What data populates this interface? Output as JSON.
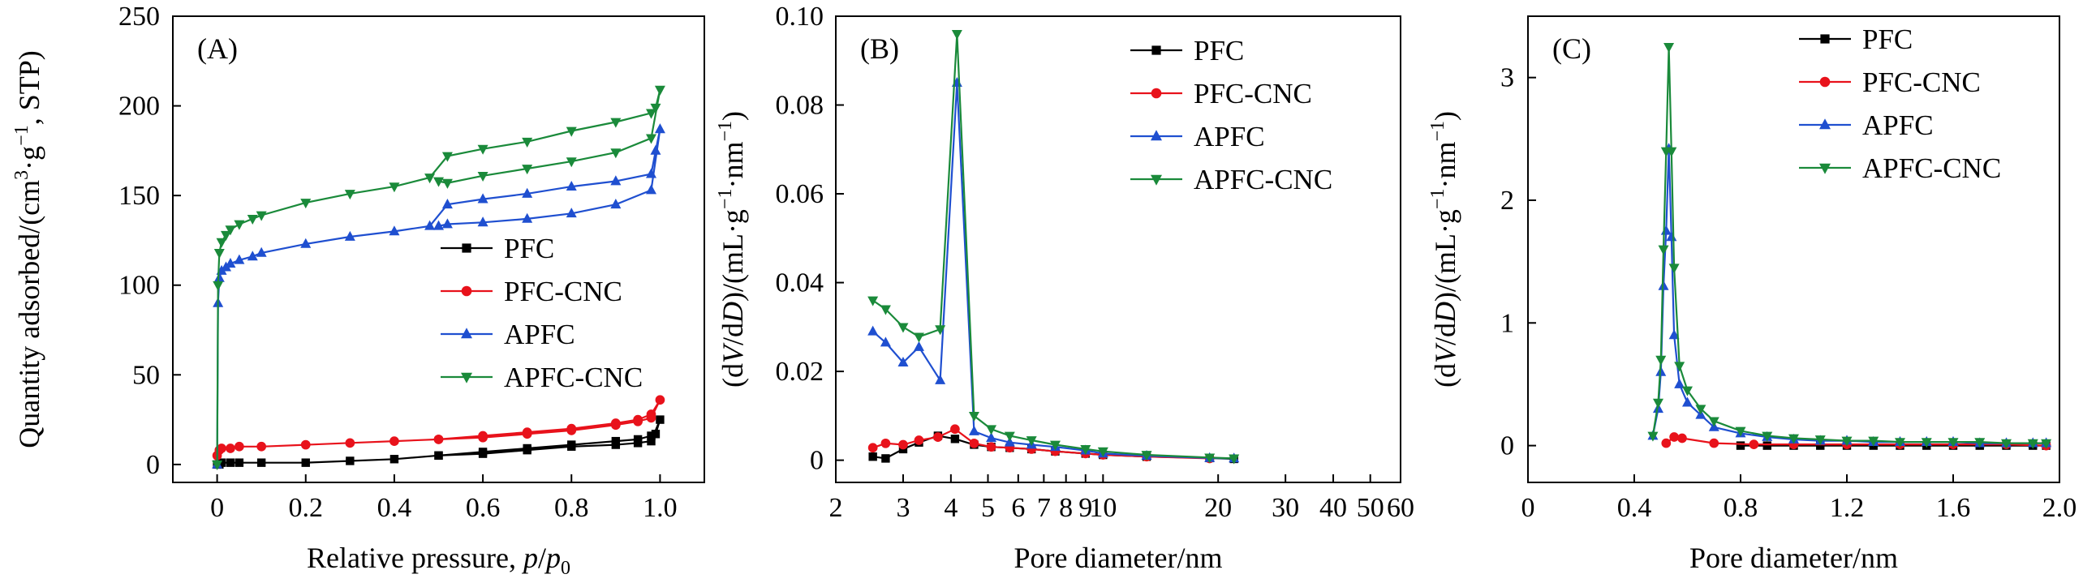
{
  "chart_data": [
    {
      "panel": "(A)",
      "type": "line",
      "xlabel": "Relative pressure, p/p0",
      "xlabel_parts": {
        "prefix": "Relative pressure, ",
        "var": "p",
        "slash": "/",
        "var2": "p",
        "sub": "0"
      },
      "ylabel": "Quantity adsorbed/(cm³·g⁻¹, STP)",
      "ylabel_parts": {
        "prefix": "Quantity adsorbed/(cm",
        "sup1": "3",
        "mid": "·g",
        "sup2": "−1",
        "suffix": ", STP)"
      },
      "xlim": [
        -0.1,
        1.1
      ],
      "ylim": [
        -10,
        250
      ],
      "xticks": [
        0,
        0.2,
        0.4,
        0.6,
        0.8,
        1.0
      ],
      "xtick_labels": [
        "0",
        "0.2",
        "0.4",
        "0.6",
        "0.8",
        "1.0"
      ],
      "yticks": [
        0,
        50,
        100,
        150,
        200,
        250
      ],
      "ytick_labels": [
        "0",
        "50",
        "100",
        "150",
        "200",
        "250"
      ],
      "legend": [
        "PFC",
        "PFC-CNC",
        "APFC",
        "APFC-CNC"
      ],
      "legend_position": "center-right",
      "series": [
        {
          "name": "PFC",
          "color": "#000000",
          "marker": "square",
          "x": [
            0.0,
            0.005,
            0.01,
            0.03,
            0.05,
            0.1,
            0.2,
            0.3,
            0.4,
            0.5,
            0.6,
            0.7,
            0.8,
            0.9,
            0.95,
            0.98,
            0.99,
            1.0,
            0.98,
            0.95,
            0.9,
            0.8,
            0.7,
            0.6,
            0.5
          ],
          "y": [
            0,
            0,
            1,
            1,
            1,
            1,
            1,
            2,
            3,
            5,
            7,
            9,
            11,
            13,
            14,
            16,
            17,
            25,
            13,
            12,
            11,
            10,
            8,
            6,
            5
          ]
        },
        {
          "name": "PFC-CNC",
          "color": "#e8121b",
          "marker": "circle",
          "x": [
            0.0,
            0.005,
            0.01,
            0.03,
            0.05,
            0.1,
            0.2,
            0.3,
            0.4,
            0.5,
            0.6,
            0.7,
            0.8,
            0.9,
            0.95,
            0.98,
            1.0,
            0.98,
            0.95,
            0.9,
            0.8,
            0.7,
            0.6,
            0.5
          ],
          "y": [
            5,
            8,
            9,
            9,
            10,
            10,
            11,
            12,
            13,
            14,
            16,
            18,
            20,
            23,
            25,
            28,
            36,
            26,
            24,
            22,
            19,
            17,
            15,
            14
          ]
        },
        {
          "name": "APFC",
          "color": "#1f4fd0",
          "marker": "triangle-up",
          "x": [
            0.0,
            0.002,
            0.005,
            0.01,
            0.02,
            0.03,
            0.05,
            0.08,
            0.1,
            0.2,
            0.3,
            0.4,
            0.48,
            0.52,
            0.6,
            0.7,
            0.8,
            0.9,
            0.98,
            0.99,
            1.0,
            0.98,
            0.9,
            0.8,
            0.7,
            0.6,
            0.52,
            0.5
          ],
          "y": [
            0,
            90,
            104,
            108,
            110,
            112,
            114,
            116,
            118,
            123,
            127,
            130,
            133,
            145,
            148,
            151,
            155,
            158,
            162,
            175,
            187,
            153,
            145,
            140,
            137,
            135,
            134,
            133
          ]
        },
        {
          "name": "APFC-CNC",
          "color": "#1a8a3a",
          "marker": "triangle-down",
          "x": [
            0.0,
            0.002,
            0.005,
            0.01,
            0.02,
            0.03,
            0.05,
            0.08,
            0.1,
            0.2,
            0.3,
            0.4,
            0.48,
            0.52,
            0.6,
            0.7,
            0.8,
            0.9,
            0.98,
            0.99,
            1.0,
            0.98,
            0.9,
            0.8,
            0.7,
            0.6,
            0.52,
            0.5
          ],
          "y": [
            0,
            100,
            118,
            124,
            128,
            131,
            134,
            137,
            139,
            146,
            151,
            155,
            160,
            172,
            176,
            180,
            186,
            191,
            196,
            199,
            209,
            182,
            174,
            169,
            165,
            161,
            157,
            158
          ]
        }
      ]
    },
    {
      "panel": "(B)",
      "type": "line",
      "xscale": "log",
      "xlabel": "Pore diameter/nm",
      "ylabel": "(dV/dD)/(mL·g⁻¹·nm⁻¹)",
      "ylabel_parts": {
        "p1": "(d",
        "v1": "V",
        "p2": "/d",
        "v2": "D",
        "p3": ")/(mL·g",
        "s1": "−1",
        "p4": "·nm",
        "s2": "−1",
        "p5": ")"
      },
      "xlim": [
        2,
        60
      ],
      "ylim": [
        -0.005,
        0.1
      ],
      "xticks": [
        2,
        3,
        4,
        5,
        6,
        7,
        8,
        9,
        10,
        20,
        30,
        40,
        50,
        60
      ],
      "xtick_labels": [
        "2",
        "3",
        "4",
        "5",
        "6",
        "7",
        "8",
        "9",
        "10",
        "20",
        "30",
        "40",
        "50",
        "60"
      ],
      "yticks": [
        0,
        0.02,
        0.04,
        0.06,
        0.08,
        0.1
      ],
      "ytick_labels": [
        "0",
        "0.02",
        "0.04",
        "0.06",
        "0.08",
        "0.10"
      ],
      "legend": [
        "PFC",
        "PFC-CNC",
        "APFC",
        "APFC-CNC"
      ],
      "legend_position": "top-right",
      "series": [
        {
          "name": "PFC",
          "color": "#000000",
          "marker": "square",
          "x": [
            2.5,
            2.7,
            3.0,
            3.3,
            3.7,
            4.1,
            4.6,
            5.1,
            5.7,
            6.5,
            7.5,
            9,
            10,
            13,
            19,
            22
          ],
          "y": [
            0.0008,
            0.0004,
            0.0025,
            0.004,
            0.0055,
            0.0048,
            0.0035,
            0.003,
            0.0028,
            0.0025,
            0.002,
            0.0015,
            0.0012,
            0.0008,
            0.0005,
            0.0003
          ]
        },
        {
          "name": "PFC-CNC",
          "color": "#e8121b",
          "marker": "circle",
          "x": [
            2.5,
            2.7,
            3.0,
            3.3,
            3.7,
            4.1,
            4.6,
            5.1,
            5.7,
            6.5,
            7.5,
            9,
            10,
            13,
            19
          ],
          "y": [
            0.0028,
            0.0038,
            0.0035,
            0.0045,
            0.0052,
            0.007,
            0.0038,
            0.003,
            0.0028,
            0.0025,
            0.002,
            0.0015,
            0.0012,
            0.0008,
            0.0004
          ]
        },
        {
          "name": "APFC",
          "color": "#1f4fd0",
          "marker": "triangle-up",
          "x": [
            2.5,
            2.7,
            3.0,
            3.3,
            3.75,
            4.15,
            4.6,
            5.1,
            5.7,
            6.5,
            7.5,
            9,
            10,
            13,
            19,
            22
          ],
          "y": [
            0.029,
            0.0265,
            0.022,
            0.0255,
            0.018,
            0.085,
            0.0065,
            0.005,
            0.004,
            0.0035,
            0.003,
            0.0022,
            0.0015,
            0.001,
            0.0005,
            0.0004
          ]
        },
        {
          "name": "APFC-CNC",
          "color": "#1a8a3a",
          "marker": "triangle-down",
          "x": [
            2.5,
            2.7,
            3.0,
            3.3,
            3.75,
            4.15,
            4.6,
            5.1,
            5.7,
            6.5,
            7.5,
            9,
            10,
            13,
            19,
            22
          ],
          "y": [
            0.036,
            0.034,
            0.03,
            0.0278,
            0.0295,
            0.096,
            0.01,
            0.007,
            0.0055,
            0.0045,
            0.0035,
            0.0025,
            0.002,
            0.0012,
            0.0006,
            0.0004
          ]
        }
      ]
    },
    {
      "panel": "(C)",
      "type": "line",
      "xlabel": "Pore diameter/nm",
      "ylabel": "(dV/dD)/(mL·g⁻¹·nm⁻¹)",
      "ylabel_parts": {
        "p1": "(d",
        "v1": "V",
        "p2": "/d",
        "v2": "D",
        "p3": ")/(mL·g",
        "s1": "−1",
        "p4": "·nm",
        "s2": "−1",
        "p5": ")"
      },
      "xlim": [
        0,
        2.0
      ],
      "ylim": [
        -0.3,
        3.5
      ],
      "xticks": [
        0,
        0.4,
        0.8,
        1.2,
        1.6,
        2.0
      ],
      "xtick_labels": [
        "0",
        "0.4",
        "0.8",
        "1.2",
        "1.6",
        "2.0"
      ],
      "yticks": [
        0,
        1,
        2,
        3
      ],
      "ytick_labels": [
        "0",
        "1",
        "2",
        "3"
      ],
      "legend": [
        "PFC",
        "PFC-CNC",
        "APFC",
        "APFC-CNC"
      ],
      "legend_position": "top-right",
      "series": [
        {
          "name": "PFC",
          "color": "#000000",
          "marker": "square",
          "x": [
            0.8,
            0.9,
            1.0,
            1.1,
            1.2,
            1.3,
            1.4,
            1.5,
            1.6,
            1.7,
            1.8,
            1.9,
            1.95
          ],
          "y": [
            0.0,
            0.0,
            0.0,
            0.0,
            0.0,
            0.0,
            0.0,
            0.0,
            0.0,
            0.0,
            0.0,
            0.0,
            0.0
          ]
        },
        {
          "name": "PFC-CNC",
          "color": "#e8121b",
          "marker": "circle",
          "x": [
            0.52,
            0.55,
            0.58,
            0.7,
            0.85,
            1.0,
            1.2,
            1.4,
            1.6,
            1.8,
            1.95
          ],
          "y": [
            0.02,
            0.07,
            0.06,
            0.02,
            0.01,
            0.01,
            0.01,
            0.01,
            0.01,
            0.01,
            0.0
          ]
        },
        {
          "name": "APFC",
          "color": "#1f4fd0",
          "marker": "triangle-up",
          "x": [
            0.47,
            0.49,
            0.5,
            0.51,
            0.52,
            0.53,
            0.54,
            0.55,
            0.57,
            0.6,
            0.65,
            0.7,
            0.8,
            0.9,
            1.0,
            1.1,
            1.2,
            1.3,
            1.4,
            1.5,
            1.6,
            1.7,
            1.8,
            1.9,
            1.95
          ],
          "y": [
            0.08,
            0.3,
            0.6,
            1.3,
            1.75,
            2.42,
            1.7,
            0.9,
            0.5,
            0.35,
            0.25,
            0.15,
            0.1,
            0.07,
            0.05,
            0.04,
            0.04,
            0.03,
            0.03,
            0.03,
            0.03,
            0.02,
            0.02,
            0.02,
            0.02
          ]
        },
        {
          "name": "APFC-CNC",
          "color": "#1a8a3a",
          "marker": "triangle-down",
          "x": [
            0.47,
            0.49,
            0.5,
            0.51,
            0.52,
            0.53,
            0.54,
            0.55,
            0.57,
            0.6,
            0.65,
            0.7,
            0.8,
            0.9,
            1.0,
            1.1,
            1.2,
            1.3,
            1.4,
            1.5,
            1.6,
            1.7,
            1.8,
            1.9,
            1.95
          ],
          "y": [
            0.08,
            0.35,
            0.7,
            1.6,
            2.4,
            3.25,
            2.4,
            1.45,
            0.65,
            0.45,
            0.3,
            0.2,
            0.12,
            0.08,
            0.06,
            0.05,
            0.04,
            0.04,
            0.03,
            0.03,
            0.03,
            0.03,
            0.02,
            0.02,
            0.02
          ]
        }
      ]
    }
  ]
}
